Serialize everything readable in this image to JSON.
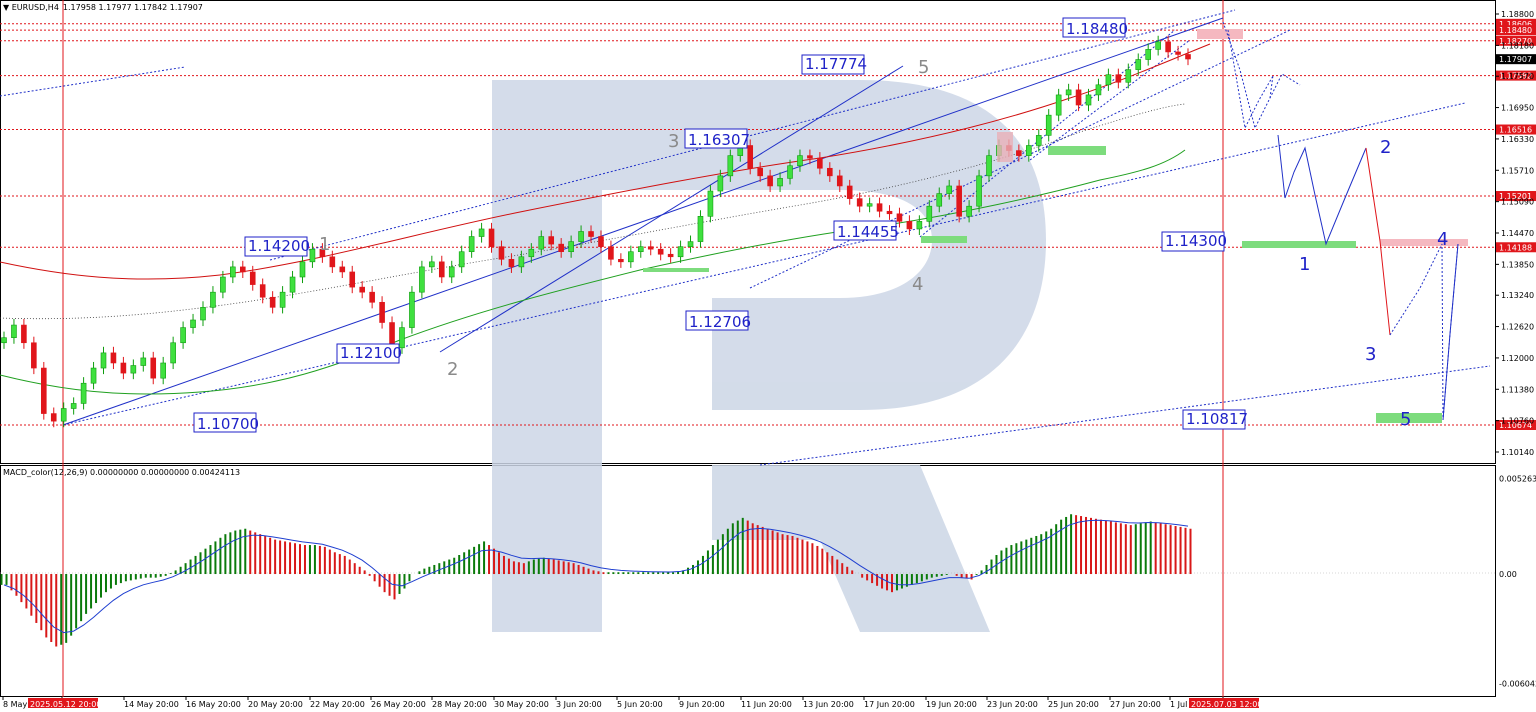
{
  "header": {
    "title": "EURUSD,H4",
    "ohlc": "1.17958 1.17977 1.17842 1.17907"
  },
  "macd_header": "MACD_color(12,26,9) 0.00000000 0.00000000 0.00424113",
  "colors": {
    "bull": "#0f9d0f",
    "bear": "#e0161b",
    "level_line": "#e0161b",
    "wave_line": "#2030c8",
    "ma_red": "#d01010",
    "ma_green": "#20a020",
    "macd_signal": "#1f3fd0",
    "macd_up": "#0a7a0a",
    "macd_down": "#d81818",
    "watermark": "#ccd6e6",
    "green_zone": "#7ddc7d",
    "pink_zone": "#f5b8c0"
  },
  "chart_data": {
    "type": "candlestick",
    "symbol": "EURUSD",
    "timeframe": "H4",
    "ylim": [
      1.1014,
      1.188
    ],
    "y_ticks": [
      "1.18800",
      "1.18180",
      "1.17570",
      "1.16950",
      "1.16330",
      "1.15710",
      "1.15090",
      "1.14470",
      "1.13850",
      "1.13240",
      "1.12620",
      "1.12000",
      "1.11380",
      "1.10760",
      "1.10140"
    ],
    "y_tick_values": [
      1.188,
      1.1818,
      1.1757,
      1.1695,
      1.1633,
      1.1571,
      1.1509,
      1.1447,
      1.1385,
      1.1324,
      1.1262,
      1.12,
      1.1138,
      1.1076,
      1.1014
    ],
    "x_ticks": [
      "8 May 2",
      "2025.05.12 20:00",
      "14 May 20:00",
      "16 May 20:00",
      "20 May 20:00",
      "22 May 20:00",
      "26 May 20:00",
      "28 May 20:00",
      "30 May 20:00",
      "3 Jun 20:00",
      "5 Jun 20:00",
      "9 Jun 20:00",
      "11 Jun 20:00",
      "13 Jun 20:00",
      "17 Jun 20:00",
      "19 Jun 20:00",
      "23 Jun 20:00",
      "25 Jun 20:00",
      "27 Jun 20:00",
      "1 Jul",
      "2025.07.03 12:00"
    ],
    "price_levels": [
      {
        "value": 1.18606,
        "label": "1.18606"
      },
      {
        "value": 1.1848,
        "label": "1.18480"
      },
      {
        "value": 1.1827,
        "label": "1.18270"
      },
      {
        "value": 1.17907,
        "label": "1.17907",
        "current": true
      },
      {
        "value": 1.17582,
        "label": "1.17582"
      },
      {
        "value": 1.16516,
        "label": "1.16516"
      },
      {
        "value": 1.15201,
        "label": "1.15201"
      },
      {
        "value": 1.14188,
        "label": "1.14188"
      },
      {
        "value": 1.10674,
        "label": "1.10674"
      }
    ],
    "annotations": [
      {
        "text": "1.18480",
        "price": 1.1848
      },
      {
        "text": "1.17774",
        "price": 1.17774
      },
      {
        "text": "1.16307",
        "price": 1.16307
      },
      {
        "text": "1.14200",
        "price": 1.142
      },
      {
        "text": "1.14455",
        "price": 1.14455
      },
      {
        "text": "1.14300",
        "price": 1.143
      },
      {
        "text": "1.12706",
        "price": 1.12706
      },
      {
        "text": "1.12100",
        "price": 1.121
      },
      {
        "text": "1.10700",
        "price": 1.107
      },
      {
        "text": "1.10817",
        "price": 1.10817
      }
    ],
    "wave_labels_gray": [
      "1",
      "2",
      "3",
      "4",
      "5"
    ],
    "wave_labels_blue": [
      "1",
      "2",
      "3",
      "4",
      "5"
    ],
    "closes": [
      1.124,
      1.1265,
      1.123,
      1.118,
      1.109,
      1.1075,
      1.11,
      1.111,
      1.115,
      1.118,
      1.121,
      1.119,
      1.117,
      1.1185,
      1.12,
      1.116,
      1.119,
      1.123,
      1.126,
      1.1275,
      1.13,
      1.133,
      1.136,
      1.138,
      1.137,
      1.1345,
      1.132,
      1.13,
      1.133,
      1.136,
      1.139,
      1.1415,
      1.14,
      1.138,
      1.137,
      1.134,
      1.133,
      1.131,
      1.127,
      1.122,
      1.126,
      1.133,
      1.138,
      1.139,
      1.136,
      1.138,
      1.141,
      1.144,
      1.1455,
      1.142,
      1.1395,
      1.138,
      1.14,
      1.1415,
      1.144,
      1.1425,
      1.141,
      1.143,
      1.145,
      1.144,
      1.142,
      1.1395,
      1.139,
      1.141,
      1.142,
      1.1415,
      1.1405,
      1.14,
      1.142,
      1.143,
      1.148,
      1.153,
      1.156,
      1.16,
      1.162,
      1.1575,
      1.156,
      1.154,
      1.1555,
      1.158,
      1.16,
      1.1595,
      1.1575,
      1.156,
      1.154,
      1.1515,
      1.15,
      1.1505,
      1.149,
      1.1485,
      1.147,
      1.1455,
      1.147,
      1.15,
      1.1525,
      1.154,
      1.148,
      1.15,
      1.156,
      1.16,
      1.162,
      1.161,
      1.16,
      1.162,
      1.164,
      1.168,
      1.172,
      1.173,
      1.17,
      1.172,
      1.174,
      1.176,
      1.1745,
      1.177,
      1.179,
      1.181,
      1.1825,
      1.1805,
      1.18,
      1.1791
    ],
    "macd": [
      -0.0006,
      -0.0012,
      -0.0019,
      -0.0027,
      -0.0035,
      -0.004,
      -0.0038,
      -0.003,
      -0.0022,
      -0.0016,
      -0.001,
      -0.0006,
      -0.0004,
      -0.0003,
      -0.0002,
      -0.0002,
      -0.0001,
      0.0002,
      0.0006,
      0.001,
      0.0014,
      0.0018,
      0.0022,
      0.0024,
      0.0025,
      0.0023,
      0.0021,
      0.0019,
      0.0018,
      0.0017,
      0.0016,
      0.0016,
      0.0015,
      0.0012,
      0.001,
      0.0006,
      0.0002,
      -0.0004,
      -0.001,
      -0.0014,
      -0.0008,
      0.0,
      0.0003,
      0.0005,
      0.0007,
      0.0009,
      0.0012,
      0.0015,
      0.0018,
      0.0014,
      0.001,
      0.0007,
      0.0006,
      0.0008,
      0.0009,
      0.0008,
      0.0007,
      0.0006,
      0.0004,
      0.0002,
      0.0001,
      0.0001,
      0.0001,
      0.0001,
      0.0001,
      0.0001,
      0.0001,
      0.0001,
      0.0002,
      0.0005,
      0.001,
      0.0016,
      0.0022,
      0.0028,
      0.0031,
      0.0028,
      0.0026,
      0.0024,
      0.0022,
      0.0021,
      0.0019,
      0.0017,
      0.0014,
      0.001,
      0.0006,
      0.0002,
      -0.0002,
      -0.0005,
      -0.0008,
      -0.001,
      -0.0008,
      -0.0006,
      -0.0004,
      -0.0002,
      -0.0001,
      0.0,
      -0.0002,
      -0.0003,
      0.0002,
      0.0008,
      0.0013,
      0.0016,
      0.0018,
      0.002,
      0.0022,
      0.0025,
      0.003,
      0.0033,
      0.0032,
      0.0031,
      0.003,
      0.0029,
      0.0028,
      0.0027,
      0.0028,
      0.0029,
      0.0028,
      0.0027,
      0.0026,
      0.0025
    ],
    "macd_ylim": [
      -0.0064,
      0.0053
    ],
    "macd_ticks": [
      "0.0052637",
      "0.00",
      "-0.0060424"
    ],
    "macd_tick_values": [
      0.0052637,
      0.0,
      -0.0060424
    ]
  }
}
